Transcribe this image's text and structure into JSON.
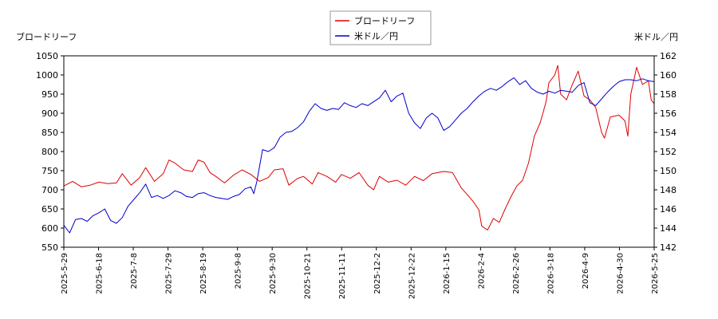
{
  "chart_data": {
    "type": "line",
    "left_axis_title": "ブロードリーフ",
    "right_axis_title": "米ドル／円",
    "x_ticks": [
      "2025-5-29",
      "2025-6-18",
      "2025-7-8",
      "2025-7-29",
      "2025-8-19",
      "2025-9-8",
      "2025-9-30",
      "2025-10-21",
      "2025-11-11",
      "2025-12-2",
      "2025-12-22",
      "2026-1-15",
      "2026-2-4",
      "2026-2-26",
      "2026-3-18",
      "2026-4-9",
      "2026-4-30",
      "2026-5-25"
    ],
    "ylim_left": [
      550,
      1050
    ],
    "yticks_left": [
      550,
      600,
      650,
      700,
      750,
      800,
      850,
      900,
      950,
      1000,
      1050
    ],
    "ylim_right": [
      142,
      162
    ],
    "yticks_right": [
      142,
      144,
      146,
      148,
      150,
      152,
      154,
      156,
      158,
      160,
      162
    ],
    "grid": false,
    "legend_position": "top-center",
    "series": [
      {
        "name": "ブロードリーフ",
        "axis": "left",
        "color": "#dd0000",
        "points": [
          [
            0,
            710
          ],
          [
            3,
            722
          ],
          [
            6,
            708
          ],
          [
            9,
            712
          ],
          [
            12,
            720
          ],
          [
            15,
            716
          ],
          [
            18,
            718
          ],
          [
            20,
            742
          ],
          [
            23,
            712
          ],
          [
            26,
            732
          ],
          [
            28,
            758
          ],
          [
            31,
            722
          ],
          [
            34,
            742
          ],
          [
            36,
            778
          ],
          [
            38,
            770
          ],
          [
            41,
            752
          ],
          [
            44,
            748
          ],
          [
            46,
            778
          ],
          [
            48,
            772
          ],
          [
            50,
            745
          ],
          [
            52,
            735
          ],
          [
            55,
            718
          ],
          [
            58,
            738
          ],
          [
            61,
            752
          ],
          [
            64,
            740
          ],
          [
            67,
            722
          ],
          [
            70,
            732
          ],
          [
            72,
            752
          ],
          [
            75,
            755
          ],
          [
            77,
            712
          ],
          [
            80,
            730
          ],
          [
            82,
            735
          ],
          [
            85,
            715
          ],
          [
            87,
            745
          ],
          [
            90,
            735
          ],
          [
            93,
            720
          ],
          [
            95,
            740
          ],
          [
            98,
            730
          ],
          [
            101,
            745
          ],
          [
            104,
            712
          ],
          [
            106,
            700
          ],
          [
            108,
            735
          ],
          [
            111,
            720
          ],
          [
            114,
            725
          ],
          [
            117,
            712
          ],
          [
            120,
            735
          ],
          [
            123,
            724
          ],
          [
            126,
            742
          ],
          [
            130,
            748
          ],
          [
            133,
            745
          ],
          [
            136,
            705
          ],
          [
            138,
            688
          ],
          [
            140,
            670
          ],
          [
            142,
            648
          ],
          [
            143,
            605
          ],
          [
            145,
            595
          ],
          [
            147,
            625
          ],
          [
            149,
            615
          ],
          [
            151,
            650
          ],
          [
            153,
            682
          ],
          [
            155,
            710
          ],
          [
            157,
            725
          ],
          [
            159,
            770
          ],
          [
            161,
            840
          ],
          [
            163,
            875
          ],
          [
            165,
            930
          ],
          [
            166,
            980
          ],
          [
            168,
            1000
          ],
          [
            169,
            1025
          ],
          [
            170,
            950
          ],
          [
            172,
            935
          ],
          [
            174,
            975
          ],
          [
            176,
            1010
          ],
          [
            178,
            945
          ],
          [
            180,
            935
          ],
          [
            182,
            915
          ],
          [
            184,
            850
          ],
          [
            185,
            835
          ],
          [
            187,
            890
          ],
          [
            190,
            895
          ],
          [
            192,
            880
          ],
          [
            193,
            840
          ],
          [
            194,
            950
          ],
          [
            196,
            1020
          ],
          [
            198,
            975
          ],
          [
            200,
            985
          ],
          [
            201,
            935
          ],
          [
            202,
            925
          ]
        ]
      },
      {
        "name": "米ドル／円",
        "axis": "right",
        "color": "#0000cc",
        "points": [
          [
            0,
            144.3
          ],
          [
            2,
            143.5
          ],
          [
            4,
            144.9
          ],
          [
            6,
            145.0
          ],
          [
            8,
            144.7
          ],
          [
            10,
            145.3
          ],
          [
            12,
            145.6
          ],
          [
            14,
            146.0
          ],
          [
            16,
            144.8
          ],
          [
            18,
            144.5
          ],
          [
            20,
            145.1
          ],
          [
            22,
            146.3
          ],
          [
            24,
            147.0
          ],
          [
            26,
            147.7
          ],
          [
            28,
            148.6
          ],
          [
            30,
            147.2
          ],
          [
            32,
            147.4
          ],
          [
            34,
            147.1
          ],
          [
            36,
            147.4
          ],
          [
            38,
            147.9
          ],
          [
            40,
            147.7
          ],
          [
            42,
            147.3
          ],
          [
            44,
            147.2
          ],
          [
            46,
            147.6
          ],
          [
            48,
            147.7
          ],
          [
            50,
            147.4
          ],
          [
            52,
            147.2
          ],
          [
            54,
            147.1
          ],
          [
            56,
            147.0
          ],
          [
            58,
            147.3
          ],
          [
            60,
            147.5
          ],
          [
            62,
            148.1
          ],
          [
            64,
            148.3
          ],
          [
            65,
            147.6
          ],
          [
            66,
            148.8
          ],
          [
            68,
            152.2
          ],
          [
            70,
            152.0
          ],
          [
            72,
            152.4
          ],
          [
            74,
            153.5
          ],
          [
            76,
            154.0
          ],
          [
            78,
            154.1
          ],
          [
            80,
            154.5
          ],
          [
            82,
            155.1
          ],
          [
            84,
            156.2
          ],
          [
            86,
            157.0
          ],
          [
            88,
            156.5
          ],
          [
            90,
            156.3
          ],
          [
            92,
            156.5
          ],
          [
            94,
            156.4
          ],
          [
            96,
            157.1
          ],
          [
            98,
            156.8
          ],
          [
            100,
            156.6
          ],
          [
            102,
            157.0
          ],
          [
            104,
            156.8
          ],
          [
            106,
            157.2
          ],
          [
            108,
            157.6
          ],
          [
            110,
            158.4
          ],
          [
            112,
            157.2
          ],
          [
            114,
            157.8
          ],
          [
            116,
            158.1
          ],
          [
            118,
            156.0
          ],
          [
            120,
            155.0
          ],
          [
            122,
            154.4
          ],
          [
            124,
            155.5
          ],
          [
            126,
            156.0
          ],
          [
            128,
            155.5
          ],
          [
            130,
            154.2
          ],
          [
            132,
            154.6
          ],
          [
            134,
            155.3
          ],
          [
            136,
            156.0
          ],
          [
            138,
            156.5
          ],
          [
            140,
            157.2
          ],
          [
            142,
            157.8
          ],
          [
            144,
            158.3
          ],
          [
            146,
            158.6
          ],
          [
            148,
            158.4
          ],
          [
            150,
            158.8
          ],
          [
            152,
            159.3
          ],
          [
            154,
            159.7
          ],
          [
            156,
            159.0
          ],
          [
            158,
            159.4
          ],
          [
            160,
            158.6
          ],
          [
            162,
            158.2
          ],
          [
            164,
            158.0
          ],
          [
            166,
            158.3
          ],
          [
            168,
            158.1
          ],
          [
            170,
            158.4
          ],
          [
            172,
            158.3
          ],
          [
            174,
            158.2
          ],
          [
            176,
            158.9
          ],
          [
            178,
            159.2
          ],
          [
            180,
            157.1
          ],
          [
            182,
            156.8
          ],
          [
            184,
            157.5
          ],
          [
            186,
            158.2
          ],
          [
            188,
            158.8
          ],
          [
            190,
            159.3
          ],
          [
            192,
            159.5
          ],
          [
            194,
            159.5
          ],
          [
            196,
            159.4
          ],
          [
            198,
            159.6
          ],
          [
            200,
            159.4
          ],
          [
            202,
            159.3
          ]
        ]
      }
    ]
  }
}
